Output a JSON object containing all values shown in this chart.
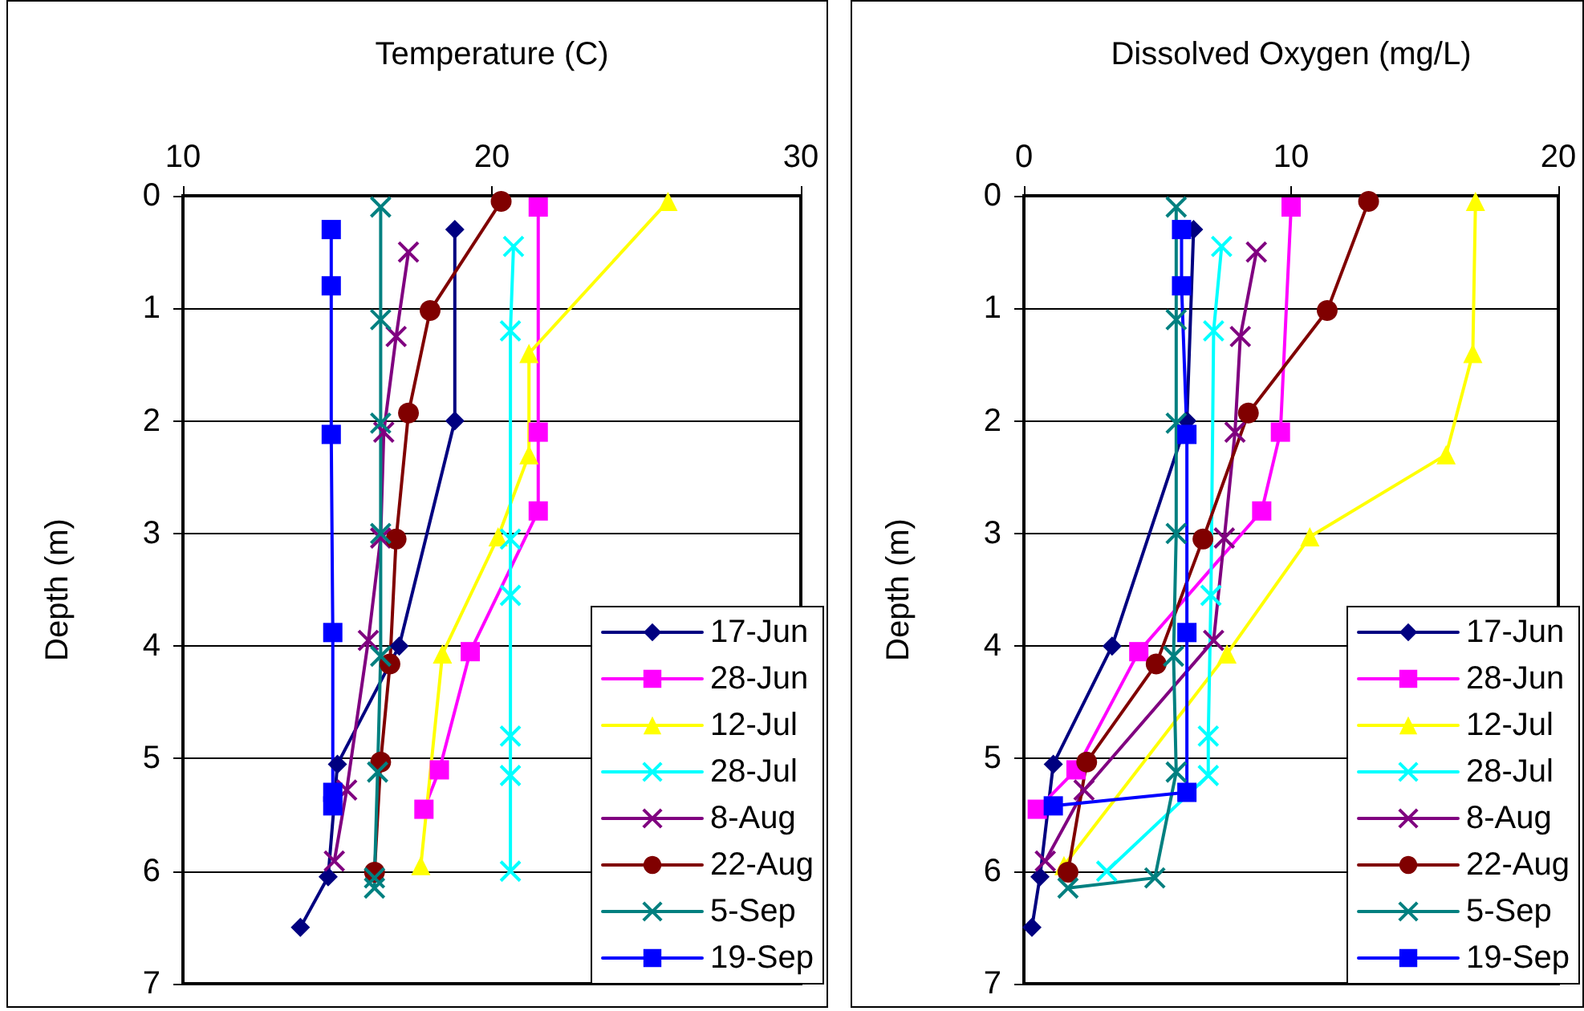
{
  "chart_data": [
    {
      "type": "line",
      "xlabel": "Temperature (C)",
      "ylabel": "Depth (m)",
      "xlim": [
        10,
        30
      ],
      "xticks": [
        10,
        20,
        30
      ],
      "ylim": [
        7,
        0
      ],
      "yticks": [
        0,
        1,
        2,
        3,
        4,
        5,
        6,
        7
      ],
      "grid": "y",
      "legend": "bottom right",
      "line_style": "solid",
      "series": [
        {
          "name": "17-Jun",
          "color": "#000080",
          "marker": "diamond",
          "x": [
            18.8,
            18.8,
            17.0,
            15.0,
            14.7,
            13.8
          ],
          "values": [
            0.3,
            2.0,
            4.0,
            5.05,
            6.05,
            6.5
          ]
        },
        {
          "name": "28-Jun",
          "color": "#ff00ff",
          "marker": "square",
          "x": [
            21.5,
            21.5,
            21.5,
            19.3,
            18.3,
            17.8
          ],
          "values": [
            0.1,
            2.1,
            2.8,
            4.05,
            5.1,
            5.45
          ]
        },
        {
          "name": "12-Jul",
          "color": "#ffff00",
          "marker": "triangle",
          "x": [
            25.7,
            21.2,
            21.2,
            20.2,
            18.4,
            17.7
          ],
          "values": [
            0.05,
            1.4,
            2.3,
            3.03,
            4.07,
            5.95
          ]
        },
        {
          "name": "28-Jul",
          "color": "#00ffff",
          "marker": "cross",
          "x": [
            20.7,
            20.6,
            20.6,
            20.6,
            20.6,
            20.6,
            20.6
          ],
          "values": [
            0.45,
            1.2,
            3.05,
            3.55,
            4.8,
            5.15,
            6.0
          ]
        },
        {
          "name": "8-Aug",
          "color": "#800080",
          "marker": "cross",
          "x": [
            17.3,
            16.9,
            16.5,
            16.4,
            16.0,
            15.3,
            14.9
          ],
          "values": [
            0.5,
            1.25,
            2.1,
            3.04,
            3.95,
            5.28,
            5.91
          ]
        },
        {
          "name": "22-Aug",
          "color": "#800000",
          "marker": "circle",
          "x": [
            20.3,
            18.0,
            17.3,
            16.9,
            16.7,
            16.4,
            16.2
          ],
          "values": [
            0.05,
            1.02,
            1.93,
            3.05,
            4.16,
            5.03,
            6.01
          ]
        },
        {
          "name": "5-Sep",
          "color": "#008080",
          "marker": "cross",
          "x": [
            16.4,
            16.4,
            16.4,
            16.4,
            16.4,
            16.3,
            16.2,
            16.2
          ],
          "values": [
            0.1,
            1.1,
            2.02,
            3.0,
            4.09,
            5.12,
            6.06,
            6.15
          ]
        },
        {
          "name": "19-Sep",
          "color": "#0000ff",
          "marker": "square",
          "x": [
            14.8,
            14.8,
            14.8,
            14.85,
            14.85,
            14.85
          ],
          "values": [
            0.3,
            0.8,
            2.12,
            3.88,
            5.3,
            5.42
          ]
        }
      ]
    },
    {
      "type": "line",
      "xlabel": "Dissolved Oxygen (mg/L)",
      "ylabel": "Depth (m)",
      "xlim": [
        0,
        20
      ],
      "xticks": [
        0,
        10,
        20
      ],
      "ylim": [
        7,
        0
      ],
      "yticks": [
        0,
        1,
        2,
        3,
        4,
        5,
        6,
        7
      ],
      "grid": "y",
      "legend": "bottom right",
      "line_style": "solid",
      "series": [
        {
          "name": "17-Jun",
          "color": "#000080",
          "marker": "diamond",
          "x": [
            6.35,
            6.1,
            3.3,
            1.1,
            0.6,
            0.3
          ],
          "values": [
            0.3,
            2.0,
            4.0,
            5.05,
            6.05,
            6.5
          ]
        },
        {
          "name": "28-Jun",
          "color": "#ff00ff",
          "marker": "square",
          "x": [
            10.0,
            9.6,
            8.9,
            4.3,
            1.95,
            0.5
          ],
          "values": [
            0.1,
            2.1,
            2.8,
            4.05,
            5.1,
            5.45
          ]
        },
        {
          "name": "12-Jul",
          "color": "#ffff00",
          "marker": "triangle",
          "x": [
            16.9,
            16.8,
            15.8,
            10.7,
            7.6,
            1.5
          ],
          "values": [
            0.05,
            1.4,
            2.3,
            3.03,
            4.07,
            5.95
          ]
        },
        {
          "name": "28-Jul",
          "color": "#00ffff",
          "marker": "cross",
          "x": [
            7.4,
            7.1,
            7.0,
            6.9,
            6.9,
            3.1
          ],
          "values": [
            0.45,
            1.2,
            3.55,
            4.8,
            5.15,
            6.0
          ]
        },
        {
          "name": "8-Aug",
          "color": "#800080",
          "marker": "cross",
          "x": [
            8.7,
            8.1,
            7.9,
            7.5,
            7.1,
            2.25,
            0.8
          ],
          "values": [
            0.5,
            1.25,
            2.1,
            3.04,
            3.95,
            5.28,
            5.91
          ]
        },
        {
          "name": "22-Aug",
          "color": "#800000",
          "marker": "circle",
          "x": [
            12.9,
            11.35,
            8.4,
            6.7,
            4.95,
            2.35,
            1.65
          ],
          "values": [
            0.05,
            1.02,
            1.93,
            3.05,
            4.16,
            5.03,
            6.01
          ]
        },
        {
          "name": "5-Sep",
          "color": "#008080",
          "marker": "cross",
          "x": [
            5.7,
            5.7,
            5.7,
            5.7,
            5.6,
            5.7,
            4.9,
            1.65
          ],
          "values": [
            0.1,
            1.1,
            2.02,
            3.0,
            4.09,
            5.12,
            6.06,
            6.15
          ]
        },
        {
          "name": "19-Sep",
          "color": "#0000ff",
          "marker": "square",
          "x": [
            5.9,
            5.9,
            6.1,
            6.1,
            6.1,
            1.1
          ],
          "values": [
            0.3,
            0.8,
            2.12,
            3.88,
            5.3,
            5.42
          ]
        }
      ]
    }
  ]
}
